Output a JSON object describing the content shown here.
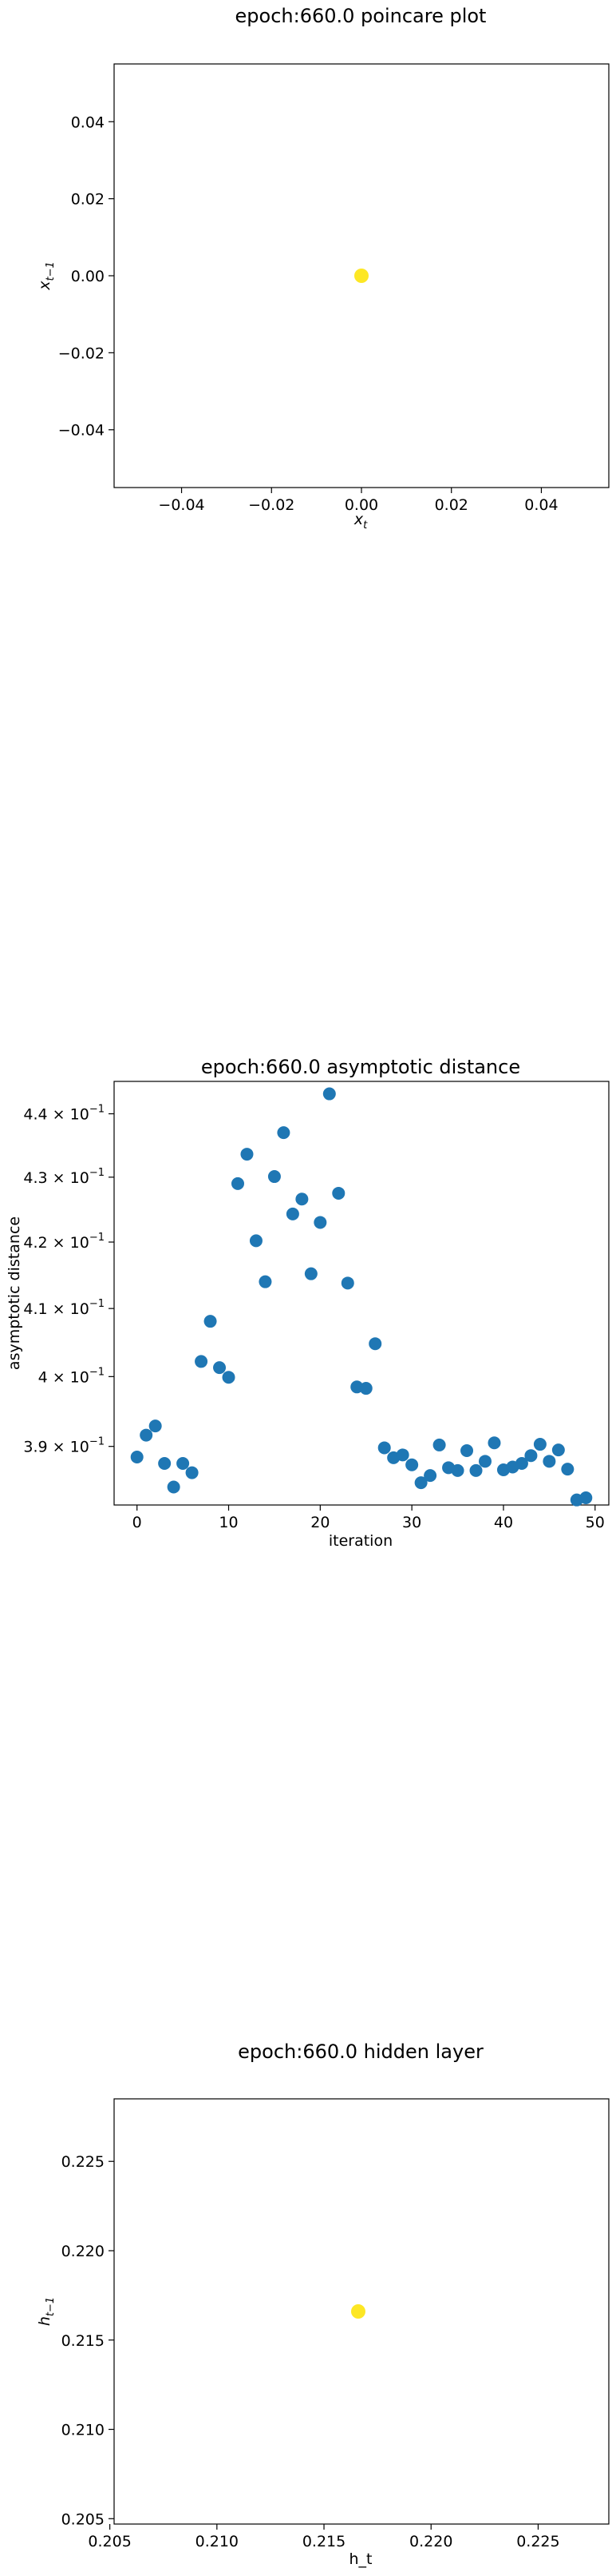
{
  "chart_data": [
    {
      "type": "scatter",
      "title": "epoch:660.0 poincare plot",
      "xlabel": "x_t",
      "ylabel": "x_{t-1}",
      "xlim": [
        -0.055,
        0.055
      ],
      "ylim": [
        -0.055,
        0.055
      ],
      "xticks": [
        -0.04,
        -0.02,
        0.0,
        0.02,
        0.04
      ],
      "xtick_labels": [
        "−0.04",
        "−0.02",
        "0.00",
        "0.02",
        "0.04"
      ],
      "yticks": [
        -0.04,
        -0.02,
        0.0,
        0.02,
        0.04
      ],
      "ytick_labels": [
        "−0.04",
        "−0.02",
        "0.00",
        "0.02",
        "0.04"
      ],
      "grid": false,
      "color": "#fde725",
      "points": [
        {
          "x": 0.0,
          "y": 0.0
        }
      ]
    },
    {
      "type": "scatter",
      "title": "epoch:660.0 asymptotic distance",
      "xlabel": "iteration",
      "ylabel": "asymptotic distance",
      "xlim": [
        -2.5,
        51.5
      ],
      "ylim": [
        0.3818,
        0.4452
      ],
      "yscale": "log",
      "xticks": [
        0,
        10,
        20,
        30,
        40,
        50
      ],
      "xtick_labels": [
        "0",
        "10",
        "20",
        "30",
        "40",
        "50"
      ],
      "ytick_values": [
        0.39,
        0.4,
        0.41,
        0.42,
        0.43,
        0.44
      ],
      "ytick_labels": [
        {
          "mantissa": "3.9",
          "exponent": "−1"
        },
        {
          "mantissa": "4",
          "exponent": "−1"
        },
        {
          "mantissa": "4.1",
          "exponent": "−1"
        },
        {
          "mantissa": "4.2",
          "exponent": "−1"
        },
        {
          "mantissa": "4.3",
          "exponent": "−1"
        },
        {
          "mantissa": "4.4",
          "exponent": "−1"
        }
      ],
      "grid": false,
      "color": "#1f77b4",
      "x": [
        0,
        1,
        2,
        3,
        4,
        5,
        6,
        7,
        8,
        9,
        10,
        11,
        12,
        13,
        14,
        15,
        16,
        17,
        18,
        19,
        20,
        21,
        22,
        23,
        24,
        25,
        26,
        27,
        28,
        29,
        30,
        31,
        32,
        33,
        34,
        35,
        36,
        37,
        38,
        39,
        40,
        41,
        42,
        43,
        44,
        45,
        46,
        47,
        48,
        49
      ],
      "y": [
        0.3885,
        0.3916,
        0.3929,
        0.3876,
        0.3843,
        0.3876,
        0.3863,
        0.4022,
        0.4081,
        0.4013,
        0.3999,
        0.429,
        0.4336,
        0.4202,
        0.414,
        0.4301,
        0.437,
        0.4243,
        0.4266,
        0.4152,
        0.423,
        0.4432,
        0.4275,
        0.4138,
        0.3985,
        0.3983,
        0.4048,
        0.3898,
        0.3884,
        0.3888,
        0.3874,
        0.3849,
        0.3859,
        0.3902,
        0.387,
        0.3866,
        0.3894,
        0.3866,
        0.3879,
        0.3905,
        0.3867,
        0.3871,
        0.3876,
        0.3887,
        0.3903,
        0.3879,
        0.3895,
        0.3868,
        0.3825,
        0.3828
      ]
    },
    {
      "type": "scatter",
      "title": "epoch:660.0 hidden layer",
      "xlabel": "h_t",
      "ylabel": "h_{t-1}",
      "xlim": [
        0.2052,
        0.2283
      ],
      "ylim": [
        0.2047,
        0.2285
      ],
      "xticks": [
        0.205,
        0.21,
        0.215,
        0.22,
        0.225
      ],
      "xtick_labels": [
        "0.205",
        "0.210",
        "0.215",
        "0.220",
        "0.225"
      ],
      "yticks": [
        0.205,
        0.21,
        0.215,
        0.22,
        0.225
      ],
      "ytick_labels": [
        "0.205",
        "0.210",
        "0.215",
        "0.220",
        "0.225"
      ],
      "grid": false,
      "color": "#fde725",
      "points": [
        {
          "x": 0.2166,
          "y": 0.2166
        }
      ]
    }
  ]
}
